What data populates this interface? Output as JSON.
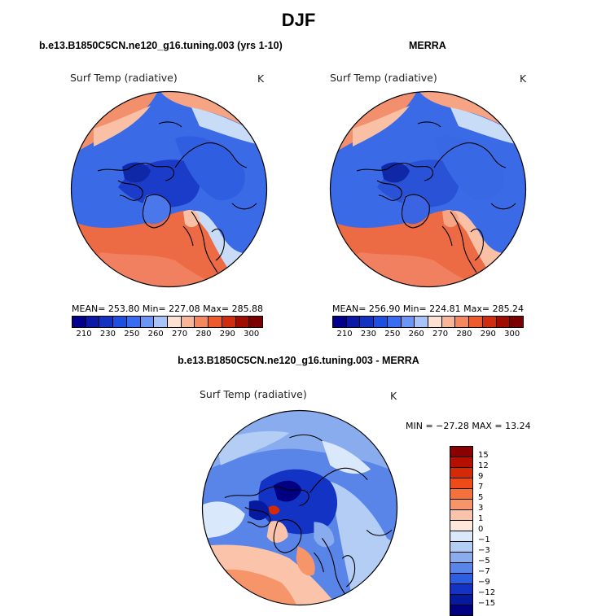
{
  "title": "DJF",
  "panels": [
    {
      "title": "b.e13.B1850C5CN.ne120_g16.tuning.003 (yrs 1-10)",
      "variable": "Surf Temp (radiative)",
      "units": "K",
      "stats": "MEAN= 253.80   Min= 227.08   Max= 285.88"
    },
    {
      "title": "MERRA",
      "variable": "Surf Temp (radiative)",
      "units": "K",
      "stats": "MEAN= 256.90   Min= 224.81   Max= 285.24"
    },
    {
      "title": "b.e13.B1850C5CN.ne120_g16.tuning.003 - MERRA",
      "variable": "Surf Temp (radiative)",
      "units": "K",
      "stats": "MIN = −27.28  MAX =   13.24"
    }
  ],
  "abs_colorbar": {
    "colors": [
      "#00008b",
      "#0a1aa6",
      "#1432c2",
      "#1f4fe0",
      "#3a6cf0",
      "#6c96f4",
      "#a9c5f7",
      "#fde2d4",
      "#f9b599",
      "#f3875f",
      "#ec5a2e",
      "#cf2c10",
      "#a00c00",
      "#7a0000"
    ],
    "ticks": [
      "210",
      "230",
      "250",
      "260",
      "270",
      "280",
      "290",
      "300"
    ]
  },
  "diff_colorbar": {
    "colors": [
      "#8b0000",
      "#b50f00",
      "#d42a08",
      "#ef4a1a",
      "#f5703a",
      "#f7956a",
      "#fbc4aa",
      "#fde8db",
      "#d9e8fa",
      "#b3cdf5",
      "#88acee",
      "#5a85e8",
      "#2c5ee0",
      "#1233c4",
      "#061aa0",
      "#000080"
    ],
    "ticks": [
      "15",
      "12",
      "9",
      "7",
      "5",
      "3",
      "1",
      "0",
      "−1",
      "−3",
      "−5",
      "−7",
      "−9",
      "−12",
      "−15"
    ]
  },
  "map_colors": {
    "ocean_cold": "#3060e0",
    "deep_cold": "#1a3cc8",
    "ice": "#5a88ec",
    "warm": "#f08060",
    "mild": "#f9c0a6",
    "pale": "#c9dcf7"
  }
}
